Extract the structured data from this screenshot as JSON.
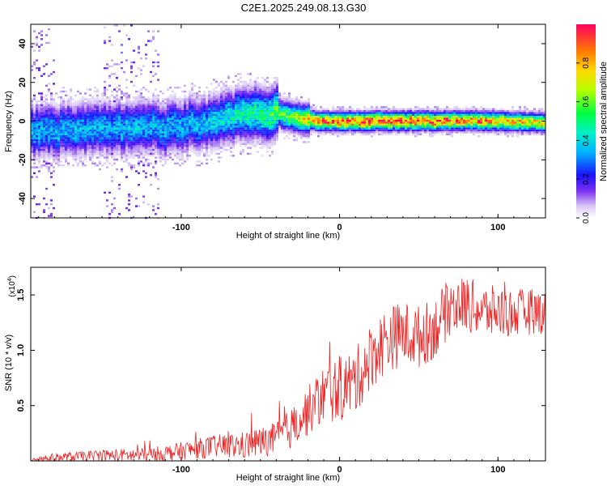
{
  "title": "C2E1.2025.249.08.13.G30",
  "chart_data": [
    {
      "type": "heatmap",
      "name": "spectrogram",
      "xlabel": "Height of straight line (km)",
      "ylabel": "Frequency (Hz)",
      "xlim": [
        -195,
        130
      ],
      "ylim": [
        -50,
        50
      ],
      "x_ticks": [
        -100,
        0,
        100
      ],
      "x_tick_labels": [
        "-100",
        "0",
        "100"
      ],
      "y_ticks": [
        -40,
        -20,
        0,
        20,
        40
      ],
      "y_tick_labels": [
        "-40",
        "-20",
        "0",
        "20",
        "40"
      ],
      "colorbar": {
        "label": "Normalized spectral amplitude",
        "range": [
          0,
          1
        ],
        "ticks": [
          0.0,
          0.2,
          0.4,
          0.6,
          0.8
        ],
        "tick_labels": [
          "0.0",
          "0.2",
          "0.4",
          "0.6",
          "0.8"
        ]
      },
      "ridge": {
        "description_points_x": [
          -195,
          -160,
          -120,
          -90,
          -65,
          -50,
          -40,
          -30,
          -15,
          0,
          50,
          100,
          130
        ],
        "center_freq": [
          -5,
          -4,
          -3,
          -2,
          4,
          3,
          4,
          2,
          0,
          0,
          0,
          0,
          -1
        ],
        "peak_amplitude": [
          0.35,
          0.35,
          0.35,
          0.35,
          0.45,
          0.5,
          0.55,
          0.6,
          0.85,
          0.9,
          0.9,
          0.8,
          0.7
        ]
      }
    },
    {
      "type": "line",
      "name": "snr",
      "xlabel": "Height of straight line (km)",
      "ylabel": "SNR (10 * v/v)",
      "multiplier_label": "(x10",
      "multiplier_exp": "4",
      "multiplier_close": ")",
      "xlim": [
        -195,
        130
      ],
      "ylim": [
        0,
        1.75
      ],
      "x_ticks": [
        -100,
        0,
        100
      ],
      "x_tick_labels": [
        "-100",
        "0",
        "100"
      ],
      "y_ticks": [
        0.5,
        1.0,
        1.5
      ],
      "y_tick_labels": [
        "0.5",
        "1.0",
        "1.5"
      ],
      "color": "#ee2222",
      "trend": {
        "x": [
          -195,
          -150,
          -120,
          -100,
          -80,
          -60,
          -40,
          -30,
          -20,
          -10,
          0,
          10,
          20,
          30,
          40,
          50,
          60,
          70,
          80,
          90,
          100,
          110,
          120,
          130
        ],
        "y": [
          0.02,
          0.05,
          0.05,
          0.09,
          0.13,
          0.14,
          0.2,
          0.3,
          0.45,
          0.6,
          0.65,
          0.72,
          0.95,
          1.1,
          1.15,
          1.12,
          1.2,
          1.4,
          1.42,
          1.35,
          1.35,
          1.33,
          1.35,
          1.35
        ]
      },
      "noise": {
        "x": [
          -195,
          -100,
          -40,
          0,
          40,
          130
        ],
        "amp": [
          0.03,
          0.08,
          0.15,
          0.3,
          0.3,
          0.2
        ]
      }
    }
  ]
}
